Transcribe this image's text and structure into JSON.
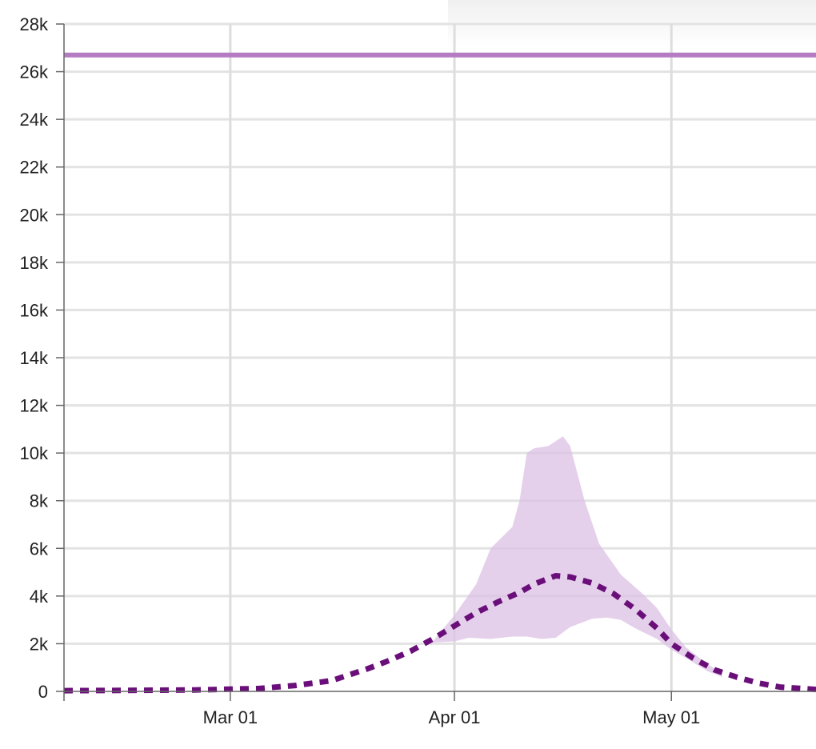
{
  "chart_data": {
    "type": "line",
    "title": "",
    "xlabel": "",
    "ylabel": "",
    "x_range": [
      "2020-02-07",
      "2020-05-21"
    ],
    "ylim": [
      0,
      28000
    ],
    "y_ticks": [
      0,
      2000,
      4000,
      6000,
      8000,
      10000,
      12000,
      14000,
      16000,
      18000,
      20000,
      22000,
      24000,
      26000,
      28000
    ],
    "y_tick_labels": [
      "0",
      "2k",
      "4k",
      "6k",
      "8k",
      "10k",
      "12k",
      "14k",
      "16k",
      "18k",
      "20k",
      "22k",
      "24k",
      "26k",
      "28k"
    ],
    "x_ticks": [
      "2020-03-01",
      "2020-04-01",
      "2020-05-01"
    ],
    "x_tick_labels": [
      "Mar 01",
      "Apr 01",
      "May 01"
    ],
    "grid": true,
    "capacity_line": {
      "value": 26700,
      "color": "#b57cc4"
    },
    "series": [
      {
        "style": "dashed",
        "color": "#6a0f7a",
        "points": [
          [
            "2020-02-07",
            30
          ],
          [
            "2020-02-15",
            40
          ],
          [
            "2020-02-25",
            60
          ],
          [
            "2020-03-05",
            120
          ],
          [
            "2020-03-10",
            250
          ],
          [
            "2020-03-15",
            450
          ],
          [
            "2020-03-17",
            650
          ],
          [
            "2020-03-20",
            950
          ],
          [
            "2020-03-23",
            1300
          ],
          [
            "2020-03-26",
            1700
          ],
          [
            "2020-03-29",
            2200
          ],
          [
            "2020-04-01",
            2750
          ],
          [
            "2020-04-04",
            3300
          ],
          [
            "2020-04-07",
            3750
          ],
          [
            "2020-04-10",
            4150
          ],
          [
            "2020-04-12",
            4500
          ],
          [
            "2020-04-15",
            4850
          ],
          [
            "2020-04-17",
            4800
          ],
          [
            "2020-04-20",
            4550
          ],
          [
            "2020-04-23",
            4100
          ],
          [
            "2020-04-26",
            3450
          ],
          [
            "2020-04-29",
            2650
          ],
          [
            "2020-05-01",
            2000
          ],
          [
            "2020-05-04",
            1400
          ],
          [
            "2020-05-07",
            900
          ],
          [
            "2020-05-10",
            600
          ],
          [
            "2020-05-13",
            350
          ],
          [
            "2020-05-16",
            180
          ],
          [
            "2020-05-21",
            80
          ]
        ]
      }
    ],
    "band": {
      "color": "#dcc0e4",
      "upper": [
        [
          "2020-03-29",
          2100
        ],
        [
          "2020-04-01",
          3200
        ],
        [
          "2020-04-04",
          4500
        ],
        [
          "2020-04-06",
          6000
        ],
        [
          "2020-04-09",
          6900
        ],
        [
          "2020-04-10",
          8000
        ],
        [
          "2020-04-11",
          10000
        ],
        [
          "2020-04-12",
          10200
        ],
        [
          "2020-04-14",
          10300
        ],
        [
          "2020-04-16",
          10700
        ],
        [
          "2020-04-17",
          10300
        ],
        [
          "2020-04-19",
          8000
        ],
        [
          "2020-04-21",
          6200
        ],
        [
          "2020-04-24",
          4900
        ],
        [
          "2020-04-27",
          4100
        ],
        [
          "2020-04-29",
          3500
        ],
        [
          "2020-05-01",
          2600
        ],
        [
          "2020-05-03",
          1850
        ],
        [
          "2020-05-06",
          1150
        ],
        [
          "2020-05-08",
          750
        ]
      ],
      "lower": [
        [
          "2020-05-08",
          600
        ],
        [
          "2020-05-06",
          850
        ],
        [
          "2020-05-03",
          1400
        ],
        [
          "2020-05-01",
          1750
        ],
        [
          "2020-04-29",
          2200
        ],
        [
          "2020-04-26",
          2650
        ],
        [
          "2020-04-24",
          3000
        ],
        [
          "2020-04-22",
          3100
        ],
        [
          "2020-04-20",
          3050
        ],
        [
          "2020-04-17",
          2700
        ],
        [
          "2020-04-15",
          2250
        ],
        [
          "2020-04-13",
          2200
        ],
        [
          "2020-04-11",
          2300
        ],
        [
          "2020-04-09",
          2300
        ],
        [
          "2020-04-06",
          2200
        ],
        [
          "2020-04-03",
          2250
        ],
        [
          "2020-04-01",
          2100
        ],
        [
          "2020-03-29",
          2050
        ]
      ]
    }
  }
}
